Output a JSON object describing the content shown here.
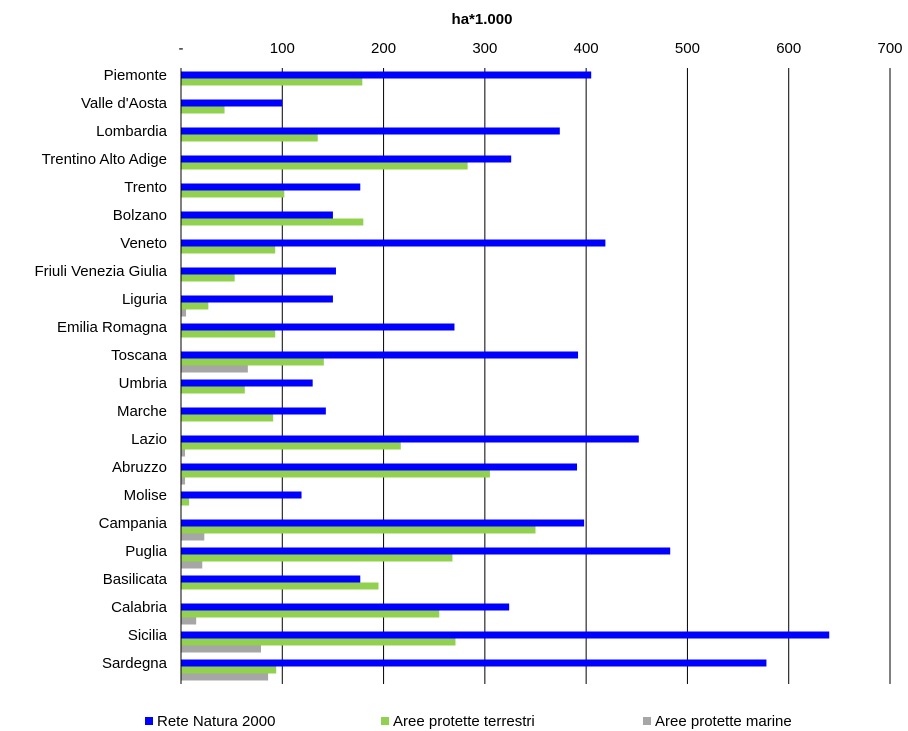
{
  "chart_data": {
    "type": "bar",
    "orientation": "horizontal",
    "title": "ha*1.000",
    "xlim": [
      0,
      700
    ],
    "x_ticks": [
      "-",
      "100",
      "200",
      "300",
      "400",
      "500",
      "600",
      "700"
    ],
    "grid": "vertical",
    "legend_position": "bottom",
    "categories": [
      "Piemonte",
      "Valle d'Aosta",
      "Lombardia",
      "Trentino Alto Adige",
      "Trento",
      "Bolzano",
      "Veneto",
      "Friuli Venezia Giulia",
      "Liguria",
      "Emilia Romagna",
      "Toscana",
      "Umbria",
      "Marche",
      "Lazio",
      "Abruzzo",
      "Molise",
      "Campania",
      "Puglia",
      "Basilicata",
      "Calabria",
      "Sicilia",
      "Sardegna"
    ],
    "series": [
      {
        "name": "Rete Natura 2000",
        "color": "#0000ff",
        "values": [
          405,
          100,
          374,
          326,
          177,
          150,
          419,
          153,
          150,
          270,
          392,
          130,
          143,
          452,
          391,
          119,
          398,
          483,
          177,
          324,
          640,
          578
        ]
      },
      {
        "name": "Aree protette terrestri",
        "color": "#92d050",
        "values": [
          179,
          43,
          135,
          283,
          102,
          180,
          93,
          53,
          27,
          93,
          141,
          63,
          91,
          217,
          305,
          8,
          350,
          268,
          195,
          255,
          271,
          94
        ]
      },
      {
        "name": "Aree protette marine",
        "color": "#a6a6a6",
        "values": [
          0,
          0,
          0,
          0,
          0,
          0,
          0,
          0,
          5,
          0,
          66,
          0,
          0,
          4,
          4,
          0,
          23,
          21,
          0,
          15,
          79,
          86
        ]
      }
    ]
  }
}
